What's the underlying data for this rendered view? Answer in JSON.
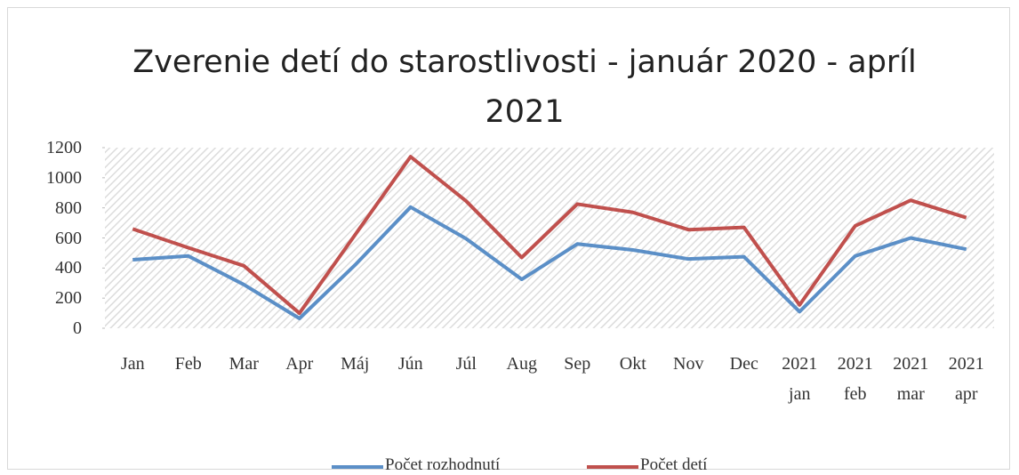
{
  "chart_data": {
    "type": "line",
    "title": "Zverenie detí do starostlivosti - január 2020 - apríl 2021",
    "categories": [
      "Jan",
      "Feb",
      "Mar",
      "Apr",
      "Máj",
      "Jún",
      "Júl",
      "Aug",
      "Sep",
      "Okt",
      "Nov",
      "Dec",
      "2021 jan",
      "2021 feb",
      "2021 mar",
      "2021 apr"
    ],
    "series": [
      {
        "name": "Počet rozhodnutí",
        "color": "#5b8fc7",
        "values": [
          455,
          480,
          290,
          65,
          420,
          805,
          595,
          325,
          560,
          520,
          460,
          475,
          110,
          480,
          600,
          525
        ]
      },
      {
        "name": "Počet detí",
        "color": "#c0504d",
        "values": [
          660,
          535,
          415,
          100,
          620,
          1140,
          845,
          470,
          825,
          770,
          655,
          670,
          155,
          680,
          850,
          735
        ]
      }
    ],
    "ylim": [
      0,
      1200
    ],
    "yticks": [
      0,
      200,
      400,
      600,
      800,
      1000,
      1200
    ],
    "legend": "bottom"
  }
}
